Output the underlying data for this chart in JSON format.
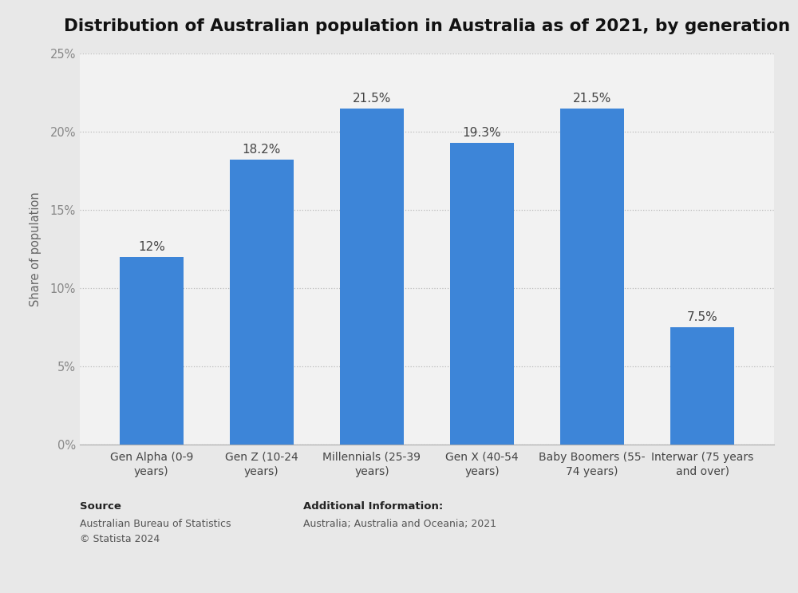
{
  "title": "Distribution of Australian population in Australia as of 2021, by generation",
  "categories": [
    "Gen Alpha (0-9\nyears)",
    "Gen Z (10-24\nyears)",
    "Millennials (25-39\nyears)",
    "Gen X (40-54\nyears)",
    "Baby Boomers (55-\n74 years)",
    "Interwar (75 years\nand over)"
  ],
  "values": [
    12.0,
    18.2,
    21.5,
    19.3,
    21.5,
    7.5
  ],
  "value_labels": [
    "12%",
    "18.2%",
    "21.5%",
    "19.3%",
    "21.5%",
    "7.5%"
  ],
  "bar_color": "#3d85d8",
  "ylabel": "Share of population",
  "ylim": [
    0,
    25
  ],
  "yticks": [
    0,
    5,
    10,
    15,
    20,
    25
  ],
  "ytick_labels": [
    "0%",
    "5%",
    "10%",
    "15%",
    "20%",
    "25%"
  ],
  "outer_background_color": "#e8e8e8",
  "inner_background_color": "#f2f2f2",
  "title_fontsize": 15.5,
  "label_fontsize": 11,
  "source_label": "Source",
  "source_body": "Australian Bureau of Statistics\n© Statista 2024",
  "additional_label": "Additional Information:",
  "additional_body": "Australia; Australia and Oceania; 2021"
}
